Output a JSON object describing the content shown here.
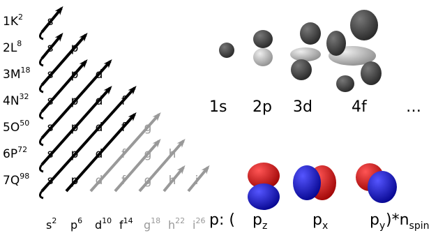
{
  "shells": [
    {
      "name": "1K",
      "capacity": "2",
      "subshells": [
        "s"
      ]
    },
    {
      "name": "2L",
      "capacity": "8",
      "subshells": [
        "s",
        "p"
      ]
    },
    {
      "name": "3M",
      "capacity": "18",
      "subshells": [
        "s",
        "p",
        "d"
      ]
    },
    {
      "name": "4N",
      "capacity": "32",
      "subshells": [
        "s",
        "p",
        "d",
        "f"
      ]
    },
    {
      "name": "5O",
      "capacity": "50",
      "subshells": [
        "s",
        "p",
        "d",
        "f",
        "g"
      ]
    },
    {
      "name": "6P",
      "capacity": "72",
      "subshells": [
        "s",
        "p",
        "d",
        "f",
        "g",
        "h"
      ]
    },
    {
      "name": "7Q",
      "capacity": "98",
      "subshells": [
        "s",
        "p",
        "d",
        "f",
        "g",
        "h",
        "i"
      ]
    }
  ],
  "subshell_totals": [
    {
      "letter": "s",
      "count": "2"
    },
    {
      "letter": "p",
      "count": "6"
    },
    {
      "letter": "d",
      "count": "10"
    },
    {
      "letter": "f",
      "count": "14"
    },
    {
      "letter": "g",
      "count": "18"
    },
    {
      "letter": "h",
      "count": "22"
    },
    {
      "letter": "i",
      "count": "26"
    }
  ],
  "orbitals": [
    "1s",
    "2p",
    "3d",
    "4f",
    "…"
  ],
  "p_orbitals": {
    "prefix": "p: (",
    "items": [
      {
        "base": "p",
        "sub": "z"
      },
      {
        "base": "p",
        "sub": "x"
      },
      {
        "base": "p",
        "sub": "y"
      }
    ],
    "suffix": ")*n",
    "suffix_sub": "spin"
  }
}
